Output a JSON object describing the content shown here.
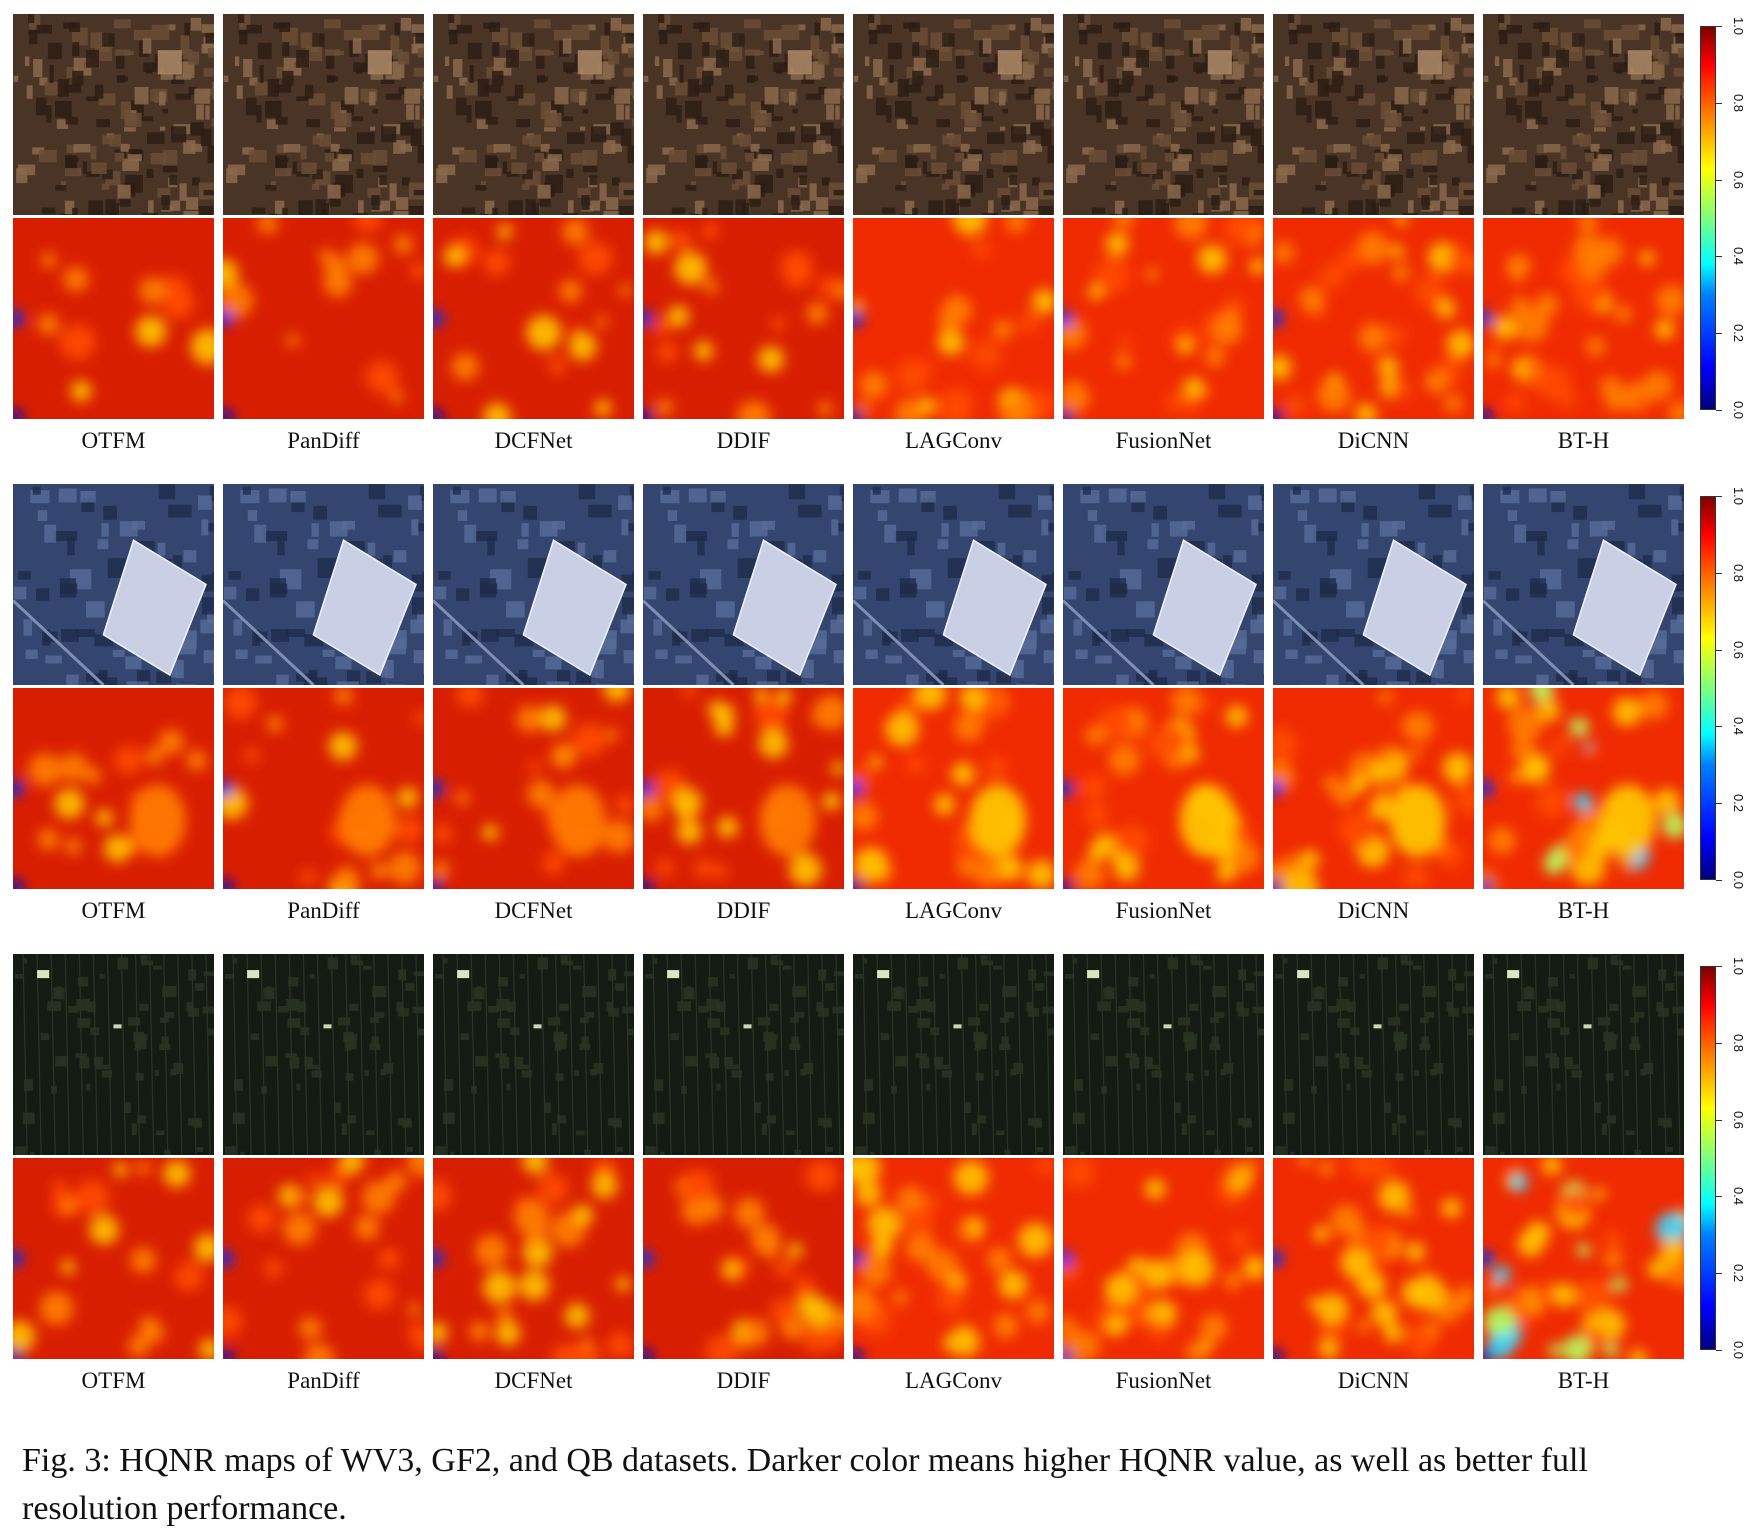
{
  "methods": [
    "OTFM",
    "PanDiff",
    "DCFNet",
    "DDIF",
    "LAGConv",
    "FusionNet",
    "DiCNN",
    "BT-H"
  ],
  "colorbar_ticks": [
    "0.0",
    "0.2",
    "0.4",
    "0.6",
    "0.8",
    "1.0"
  ],
  "colorbar_range": [
    0,
    1
  ],
  "colormap": "jet",
  "panels": [
    {
      "label_row": [
        "OTFM",
        "PanDiff",
        "DCFNet",
        "DDIF",
        "LAGConv",
        "FusionNet",
        "DiCNN",
        "BT-H"
      ],
      "image_tint": "#4a3426"
    },
    {
      "label_row": [
        "OTFM",
        "PanDiff",
        "DCFNet",
        "DDIF",
        "LAGConv",
        "FusionNet",
        "DiCNN",
        "BT-H"
      ],
      "image_tint": "#344a78"
    },
    {
      "label_row": [
        "OTFM",
        "PanDiff",
        "DCFNet",
        "DDIF",
        "LAGConv",
        "FusionNet",
        "DiCNN",
        "BT-H"
      ],
      "image_tint": "#141b12"
    }
  ],
  "caption": "Fig. 3: HQNR maps of WV3, GF2, and QB datasets. Darker color means higher HQNR value, as well as better full resolution performance."
}
